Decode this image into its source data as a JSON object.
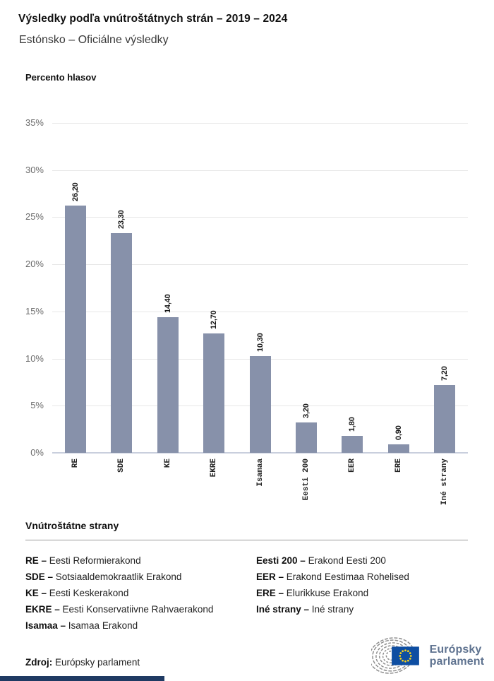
{
  "header": {
    "title": "Výsledky podľa vnútroštátnych strán – 2019 – 2024",
    "subtitle": "Estónsko – Oficiálne výsledky"
  },
  "chart_data": {
    "type": "bar",
    "title": "Výsledky podľa vnútroštátnych strán – 2019 – 2024",
    "subtitle": "Estónsko – Oficiálne výsledky",
    "ylabel": "Percento hlasov",
    "xlabel": "",
    "categories": [
      "RE",
      "SDE",
      "KE",
      "EKRE",
      "Isamaa",
      "Eesti 200",
      "EER",
      "ERE",
      "Iné strany"
    ],
    "values": [
      26.2,
      23.3,
      14.4,
      12.7,
      10.3,
      3.2,
      1.8,
      0.9,
      7.2
    ],
    "value_labels": [
      "26,20",
      "23,30",
      "14,40",
      "12,70",
      "10,30",
      "3,20",
      "1,80",
      "0,90",
      "7,20"
    ],
    "ylim": [
      0,
      35
    ],
    "y_tick_values": [
      0,
      5,
      10,
      15,
      20,
      25,
      30,
      35
    ],
    "y_tick_labels": [
      "0%",
      "5%",
      "10%",
      "15%",
      "20%",
      "25%",
      "30%",
      "35%"
    ],
    "grid": "horizontal",
    "legend_position": "none"
  },
  "colors": {
    "bar": "#8791AA",
    "grid": "#E7E7E7",
    "axis_line": "#C9CFDD",
    "accent_bar": "#1F3A63",
    "eu_blue": "#0E4EA2",
    "star_yellow": "#FFD617",
    "hemicycle_gray": "#8C8C8C",
    "logo_text": "#5F7390"
  },
  "legend": {
    "heading": "Vnútroštátne strany",
    "separator": "–",
    "columns": [
      [
        {
          "abbr": "RE",
          "name": "Eesti Reformierakond"
        },
        {
          "abbr": "SDE",
          "name": "Sotsiaaldemokraatlik Erakond"
        },
        {
          "abbr": "KE",
          "name": "Eesti Keskerakond"
        },
        {
          "abbr": "EKRE",
          "name": "Eesti Konservatiivne Rahvaerakond"
        },
        {
          "abbr": "Isamaa",
          "name": "Isamaa Erakond"
        }
      ],
      [
        {
          "abbr": "Eesti 200",
          "name": "Erakond Eesti 200"
        },
        {
          "abbr": "EER",
          "name": "Erakond Eestimaa Rohelised"
        },
        {
          "abbr": "ERE",
          "name": "Elurikkuse Erakond"
        },
        {
          "abbr": "Iné strany",
          "name": "Iné strany"
        }
      ]
    ]
  },
  "footer": {
    "source_label": "Zdroj:",
    "source_value": "Európsky parlament",
    "logo_line1": "Európsky",
    "logo_line2": "parlament"
  }
}
